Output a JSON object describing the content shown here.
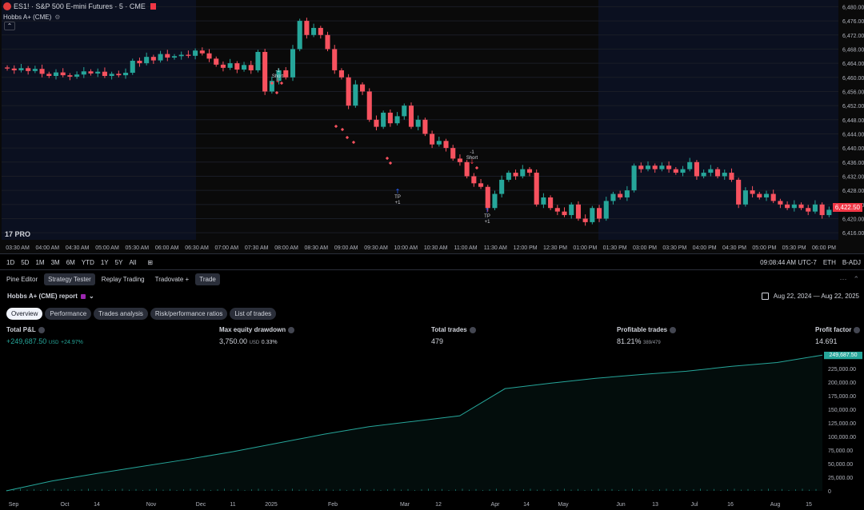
{
  "legend": {
    "symbol": "ES1! · S&P 500 E-mini Futures · 5 · CME",
    "indicator": "Hobbs A+ (CME)"
  },
  "price_axis": [
    "6,480.00",
    "6,476.00",
    "6,472.00",
    "6,468.00",
    "6,464.00",
    "6,460.00",
    "6,456.00",
    "6,452.00",
    "6,448.00",
    "6,444.00",
    "6,440.00",
    "6,436.00",
    "6,432.00",
    "6,428.00",
    "6,424.00",
    "6,420.00",
    "6,416.00"
  ],
  "last_price": "6,422.50",
  "time_axis": [
    "03:30 AM",
    "04:00 AM",
    "04:30 AM",
    "05:00 AM",
    "05:30 AM",
    "06:00 AM",
    "06:30 AM",
    "07:00 AM",
    "07:30 AM",
    "08:00 AM",
    "08:30 AM",
    "09:00 AM",
    "09:30 AM",
    "10:00 AM",
    "10:30 AM",
    "11:00 AM",
    "11:30 AM",
    "12:00 PM",
    "12:30 PM",
    "01:00 PM",
    "01:30 PM",
    "03:00 PM",
    "03:30 PM",
    "04:00 PM",
    "04:30 PM",
    "05:00 PM",
    "05:30 PM",
    "06:00 PM"
  ],
  "annotations": [
    {
      "text1": "-1",
      "text2": "Short"
    },
    {
      "text1": "-1",
      "text2": "Short"
    },
    {
      "text1": "TP",
      "text2": "+1"
    },
    {
      "text1": "TP",
      "text2": "+1"
    }
  ],
  "timeframes": [
    "1D",
    "5D",
    "1M",
    "3M",
    "6M",
    "YTD",
    "1Y",
    "5Y",
    "All"
  ],
  "toolbar_right": {
    "clock": "09:08:44 AM UTC-7",
    "session": "ETH",
    "adj": "B-ADJ"
  },
  "tabs": [
    "Pine Editor",
    "Strategy Tester",
    "Replay Trading",
    "Tradovate +",
    "Trade"
  ],
  "report_title": "Hobbs A+ (CME) report",
  "date_range": "Aug 22, 2024 — Aug 22, 2025",
  "subtabs": [
    "Overview",
    "Performance",
    "Trades analysis",
    "Risk/performance ratios",
    "List of trades"
  ],
  "stats": {
    "total_pnl": {
      "label": "Total P&L",
      "value": "+249,687.50",
      "unit": "USD",
      "pct": "+24.97%"
    },
    "drawdown": {
      "label": "Max equity drawdown",
      "value": "3,750.00",
      "unit": "USD",
      "pct": "0.33%"
    },
    "trades": {
      "label": "Total trades",
      "value": "479"
    },
    "profitable": {
      "label": "Profitable trades",
      "value": "81.21%",
      "sub": "389/479"
    },
    "profit_factor": {
      "label": "Profit factor",
      "value": "14.691"
    }
  },
  "equity_axis": [
    "225,000.00",
    "200,000.00",
    "175,000.00",
    "150,000.00",
    "125,000.00",
    "100,000.00",
    "75,000.00",
    "50,000.00",
    "25,000.00",
    "0"
  ],
  "equity_last": "249,687.50",
  "equity_dates": [
    "Sep",
    "Oct",
    "14",
    "Nov",
    "Dec",
    "11",
    "2025",
    "Feb",
    "Mar",
    "12",
    "Apr",
    "14",
    "May",
    "Jun",
    "13",
    "Jul",
    "16",
    "Aug",
    "15"
  ],
  "colors": {
    "up": "#26a69a",
    "down": "#f7525f",
    "accent": "#2962ff"
  },
  "chart_data": [
    {
      "type": "candlestick",
      "title": "ES1! · S&P 500 E-mini Futures · 5 · CME",
      "ylim": [
        6414,
        6481
      ],
      "close_series": [
        6462.5,
        6462.0,
        6462.6,
        6461.8,
        6462.4,
        6461.0,
        6460.4,
        6461.4,
        6460.6,
        6460.2,
        6460.8,
        6461.7,
        6461.1,
        6461.6,
        6460.4,
        6461.0,
        6460.6,
        6461.3,
        6464.7,
        6464.0,
        6465.8,
        6464.8,
        6466.6,
        6465.6,
        6466.0,
        6466.4,
        6466.1,
        6467.6,
        6466.8,
        6465.3,
        6463.6,
        6462.7,
        6464.0,
        6462.2,
        6463.5,
        6462.0,
        6467.2,
        6456.0,
        6459.0,
        6462.0,
        6460.0,
        6468.0,
        6476.0,
        6472.0,
        6474.0,
        6472.0,
        6468.0,
        6462.0,
        6460.0,
        6452.0,
        6458.0,
        6456.0,
        6448.0,
        6446.0,
        6450.0,
        6447.0,
        6449.0,
        6452.0,
        6446.0,
        6448.0,
        6444.0,
        6441.0,
        6442.0,
        6440.0,
        6437.0,
        6436.0,
        6432.0,
        6430.0,
        6429.0,
        6423.0,
        6427.0,
        6431.0,
        6433.0,
        6432.0,
        6434.0,
        6433.0,
        6424.0,
        6426.0,
        6423.0,
        6422.0,
        6421.0,
        6424.0,
        6420.0,
        6419.0,
        6423.0,
        6420.0,
        6425.0,
        6427.0,
        6426.0,
        6428.0,
        6435.0,
        6434.0,
        6435.0,
        6434.0,
        6435.0,
        6434.0,
        6433.0,
        6434.0,
        6436.0,
        6432.0,
        6433.0,
        6434.0,
        6432.0,
        6433.0,
        6431.0,
        6424.0,
        6428.0,
        6427.0,
        6426.0,
        6427.0,
        6425.0,
        6424.0,
        6423.0,
        6424.0,
        6423.0,
        6422.0,
        6424.0,
        6421.0,
        6422.5
      ]
    },
    {
      "type": "area",
      "title": "Hobbs A+ (CME) report",
      "ylim": [
        0,
        250000
      ],
      "x": [
        "Sep",
        "Oct",
        "14",
        "Nov",
        "Dec",
        "11",
        "2025",
        "Feb",
        "Mar",
        "12",
        "Apr",
        "14",
        "May",
        "Jun",
        "13",
        "Jul",
        "16",
        "Aug",
        "15"
      ],
      "series": [
        {
          "values": [
            0,
            18000,
            32000,
            45000,
            58000,
            72000,
            88000,
            104000,
            118000,
            128000,
            138000,
            188000,
            198000,
            207000,
            214000,
            220000,
            229000,
            236000,
            249687.5
          ]
        }
      ]
    }
  ]
}
